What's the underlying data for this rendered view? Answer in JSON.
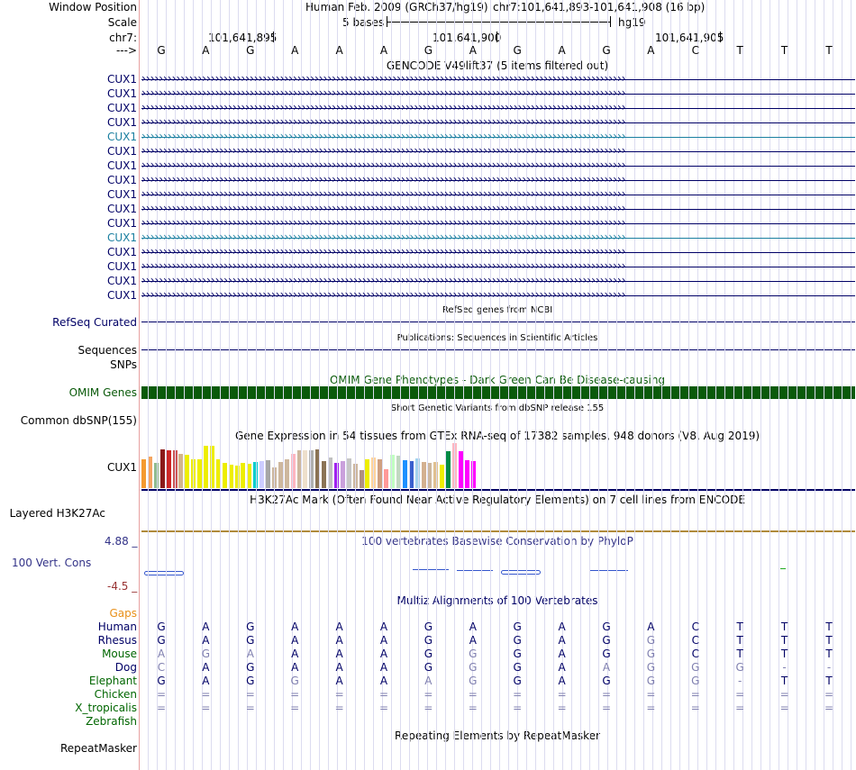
{
  "header": {
    "window_position_label": "Window Position",
    "scale_label": "Scale",
    "chrom_label": "chr7:",
    "strand_label": "--->",
    "assembly": "Human Feb. 2009 (GRCh37/hg19)",
    "position": "chr7:101,641,893-101,641,908 (16 bp)",
    "scale_text": "5 bases",
    "scale_db": "hg19",
    "coords": [
      "101,641,895",
      "101,641,900",
      "101,641,905"
    ]
  },
  "sequence": [
    "G",
    "A",
    "G",
    "A",
    "A",
    "A",
    "G",
    "A",
    "G",
    "A",
    "G",
    "A",
    "C",
    "T",
    "T",
    "T"
  ],
  "gencode": {
    "title": "GENCODE V49lift37 (5 items filtered out)",
    "gene_name": "CUX1",
    "track_count": 16,
    "highlighted_rows": [
      4,
      11
    ]
  },
  "refseq": {
    "label": "RefSeq Curated",
    "title": "RefSeq genes from NCBI"
  },
  "publications": {
    "label": "Sequences",
    "title": "Publications: Sequences in Scientific Articles"
  },
  "snps": {
    "label": "SNPs"
  },
  "omim": {
    "label": "OMIM Genes",
    "title": "OMIM Gene Phenotypes - Dark Green Can Be Disease-causing",
    "bar_color": "#0a5a0a"
  },
  "dbsnp": {
    "label": "Common dbSNP(155)",
    "title": "Short Genetic Variants from dbSNP release 155"
  },
  "gtex": {
    "label": "CUX1",
    "title": "Gene Expression in 54 tissues from GTEx RNA-seq of 17382 samples, 948 donors (V8, Aug 2019)",
    "values": [
      0.62,
      0.68,
      0.54,
      0.82,
      0.81,
      0.8,
      0.74,
      0.71,
      0.62,
      0.62,
      0.91,
      0.9,
      0.62,
      0.53,
      0.5,
      0.48,
      0.53,
      0.51,
      0.55,
      0.58,
      0.6,
      0.44,
      0.56,
      0.62,
      0.74,
      0.8,
      0.81,
      0.8,
      0.82,
      0.57,
      0.65,
      0.54,
      0.58,
      0.63,
      0.52,
      0.38,
      0.62,
      0.66,
      0.62,
      0.4,
      0.71,
      0.7,
      0.6,
      0.58,
      0.64,
      0.56,
      0.53,
      0.56,
      0.5,
      0.78,
      0.96,
      0.78,
      0.6,
      0.58
    ],
    "colors": [
      "#f49b30",
      "#f4a460",
      "#8fbc8f",
      "#8b1a1a",
      "#cd2626",
      "#cd5555",
      "#d2b48c",
      "#eeee00",
      "#eeee00",
      "#eeee00",
      "#eeee00",
      "#eeee00",
      "#eeee00",
      "#eeee00",
      "#eeee00",
      "#eeee00",
      "#eeee00",
      "#eeee00",
      "#00cdcd",
      "#ccccff",
      "#a6a6a6",
      "#cdb79e",
      "#cdb79e",
      "#cdb79e",
      "#ffb6c1",
      "#cdb79e",
      "#eedfcc",
      "#b0b0b0",
      "#8b7355",
      "#8b7355",
      "#c0c0c0",
      "#a020f0",
      "#c9a0dc",
      "#c6c6c6",
      "#cdb79e",
      "#b09080",
      "#eeee00",
      "#ffd39b",
      "#d0a080",
      "#ff9999",
      "#c1ffc1",
      "#c1d9c1",
      "#1e90ff",
      "#3a5fcd",
      "#a4d3ee",
      "#d3b090",
      "#cdb79e",
      "#e0c090",
      "#eeee00",
      "#008b45",
      "#ffb6c1",
      "#ff00ff",
      "#ff00ff",
      "#ff00ff"
    ]
  },
  "h3k27ac": {
    "label": "Layered H3K27Ac",
    "title": "H3K27Ac Mark (Often Found Near Active Regulatory Elements) on 7 cell lines from ENCODE"
  },
  "phylop": {
    "label": "100 Vert. Cons",
    "max": "4.88 _",
    "min": "-4.5 _",
    "title": "100 vertebrates Basewise Conservation by PhyloP"
  },
  "multiz": {
    "title": "Multiz Alignments of 100 Vertebrates",
    "gaps_label": "Gaps",
    "species": [
      {
        "name": "Human",
        "color": "#000066",
        "seq": [
          "G",
          "A",
          "G",
          "A",
          "A",
          "A",
          "G",
          "A",
          "G",
          "A",
          "G",
          "A",
          "C",
          "T",
          "T",
          "T"
        ],
        "dim": []
      },
      {
        "name": "Rhesus",
        "color": "#000066",
        "seq": [
          "G",
          "A",
          "G",
          "A",
          "A",
          "A",
          "G",
          "A",
          "G",
          "A",
          "G",
          "G",
          "C",
          "T",
          "T",
          "T"
        ],
        "dim": [
          11
        ]
      },
      {
        "name": "Mouse",
        "color": "#006600",
        "seq": [
          "A",
          "G",
          "A",
          "A",
          "A",
          "A",
          "G",
          "G",
          "G",
          "A",
          "G",
          "G",
          "C",
          "T",
          "T",
          "T"
        ],
        "dim": [
          0,
          1,
          2,
          7,
          11
        ]
      },
      {
        "name": "Dog",
        "color": "#000066",
        "seq": [
          "C",
          "A",
          "G",
          "A",
          "A",
          "A",
          "G",
          "G",
          "G",
          "A",
          "A",
          "G",
          "G",
          "G",
          "-",
          "-"
        ],
        "dim": [
          0,
          7,
          10,
          11,
          12,
          13,
          14,
          15
        ]
      },
      {
        "name": "Elephant",
        "color": "#006600",
        "seq": [
          "G",
          "A",
          "G",
          "G",
          "A",
          "A",
          "A",
          "G",
          "G",
          "A",
          "G",
          "G",
          "G",
          "-",
          "T",
          "T"
        ],
        "dim": [
          3,
          6,
          7,
          11,
          12,
          13
        ]
      },
      {
        "name": "Chicken",
        "color": "#006600",
        "seq": [
          "=",
          "=",
          "=",
          "=",
          "=",
          "=",
          "=",
          "=",
          "=",
          "=",
          "=",
          "=",
          "=",
          "=",
          "=",
          "="
        ],
        "dim": [
          0,
          1,
          2,
          3,
          4,
          5,
          6,
          7,
          8,
          9,
          10,
          11,
          12,
          13,
          14,
          15
        ]
      },
      {
        "name": "X_tropicalis",
        "color": "#006600",
        "seq": [
          "=",
          "=",
          "=",
          "=",
          "=",
          "=",
          "=",
          "=",
          "=",
          "=",
          "=",
          "=",
          "=",
          "=",
          "=",
          "="
        ],
        "dim": [
          0,
          1,
          2,
          3,
          4,
          5,
          6,
          7,
          8,
          9,
          10,
          11,
          12,
          13,
          14,
          15
        ]
      },
      {
        "name": "Zebrafish",
        "color": "#006600",
        "seq": [],
        "dim": []
      }
    ]
  },
  "repeatmasker": {
    "label": "RepeatMasker",
    "title": "Repeating Elements by RepeatMasker"
  }
}
